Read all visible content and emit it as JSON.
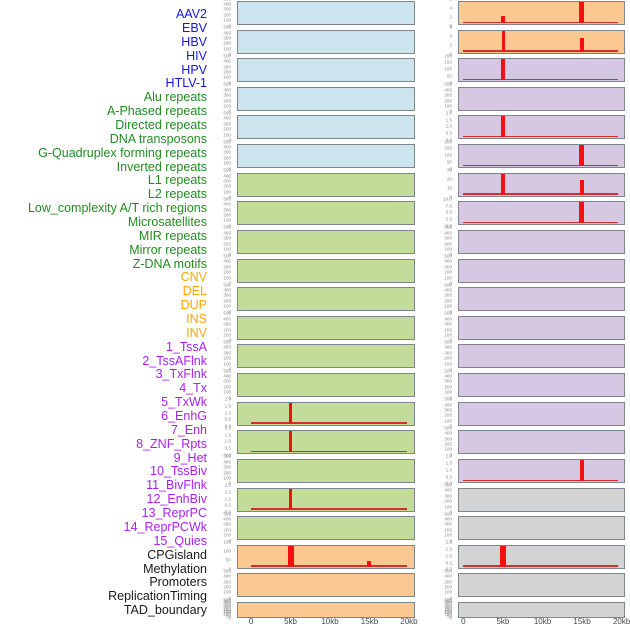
{
  "colors": {
    "virus_label": "#1515e6",
    "repeat_label": "#228B22",
    "structural_variant_label": "#FFA500",
    "chromatin_state_label": "#a821f0",
    "other_label": "#1a1a1a",
    "virus_bg": "#cbe4ee",
    "repeat_bg": "#c3dc9a",
    "structural_variant_bg": "#fcc892",
    "chromatin_state_bg": "#d6c8e2",
    "other_bg": "#d3d3d3",
    "line_red": "#f50f0f",
    "box_border": "#7e868d",
    "tick_text": "#8a8a8a",
    "axis_text": "#4a4a4a"
  },
  "chart_data": {
    "type": "line",
    "title": "",
    "x_tick_labels": [
      "0",
      "5kb",
      "10kb",
      "15kb",
      "20kb"
    ],
    "x_tick_kb": [
      0,
      5,
      10,
      15,
      20
    ],
    "x_range_kb": [
      0,
      20
    ],
    "layout": "22 rows x 2 columns of mini profiles; labels listed column-major (first 22 = left column, last 22 = right column)",
    "legend_position": "none",
    "grid": false,
    "panels": [
      {
        "label": "AAV2",
        "category": "virus",
        "column": "left",
        "y_ticks": [
          "500",
          "400",
          "300",
          "200",
          "100",
          "0"
        ],
        "baseline": false,
        "peaks": []
      },
      {
        "label": "EBV",
        "category": "virus",
        "column": "left",
        "y_ticks": [
          "500",
          "400",
          "300",
          "200",
          "100",
          "0"
        ],
        "baseline": false,
        "peaks": []
      },
      {
        "label": "HBV",
        "category": "virus",
        "column": "left",
        "y_ticks": [
          "500",
          "400",
          "300",
          "200",
          "100",
          "0"
        ],
        "baseline": false,
        "peaks": []
      },
      {
        "label": "HIV",
        "category": "virus",
        "column": "left",
        "y_ticks": [
          "500",
          "400",
          "300",
          "200",
          "100",
          "0"
        ],
        "baseline": false,
        "peaks": []
      },
      {
        "label": "HPV",
        "category": "virus",
        "column": "left",
        "y_ticks": [
          "500",
          "400",
          "300",
          "200",
          "100",
          "0"
        ],
        "baseline": false,
        "peaks": []
      },
      {
        "label": "HTLV-1",
        "category": "virus",
        "column": "left",
        "y_ticks": [
          "500",
          "400",
          "300",
          "200",
          "100",
          "0"
        ],
        "baseline": false,
        "peaks": []
      },
      {
        "label": "Alu repeats",
        "category": "repeat",
        "column": "left",
        "y_ticks": [
          "500",
          "400",
          "300",
          "200",
          "100",
          "0"
        ],
        "baseline": false,
        "peaks": []
      },
      {
        "label": "A-Phased repeats",
        "category": "repeat",
        "column": "left",
        "y_ticks": [
          "500",
          "400",
          "300",
          "200",
          "100",
          "0"
        ],
        "baseline": false,
        "peaks": []
      },
      {
        "label": "Directed repeats",
        "category": "repeat",
        "column": "left",
        "y_ticks": [
          "500",
          "400",
          "300",
          "200",
          "100",
          "0"
        ],
        "baseline": false,
        "peaks": []
      },
      {
        "label": "DNA transposons",
        "category": "repeat",
        "column": "left",
        "y_ticks": [
          "500",
          "400",
          "300",
          "200",
          "100",
          "0"
        ],
        "baseline": false,
        "peaks": []
      },
      {
        "label": "G-Quadruplex forming repeats",
        "category": "repeat",
        "column": "left",
        "y_ticks": [
          "500",
          "400",
          "300",
          "200",
          "100",
          "0"
        ],
        "baseline": false,
        "peaks": []
      },
      {
        "label": "Inverted repeats",
        "category": "repeat",
        "column": "left",
        "y_ticks": [
          "500",
          "400",
          "300",
          "200",
          "100",
          "0"
        ],
        "baseline": false,
        "peaks": []
      },
      {
        "label": "L1 repeats",
        "category": "repeat",
        "column": "left",
        "y_ticks": [
          "500",
          "400",
          "300",
          "200",
          "100",
          "0"
        ],
        "baseline": false,
        "peaks": []
      },
      {
        "label": "L2 repeats",
        "category": "repeat",
        "column": "left",
        "y_ticks": [
          "500",
          "400",
          "300",
          "200",
          "100",
          "0"
        ],
        "baseline": false,
        "peaks": []
      },
      {
        "label": "Low_complexity A/T rich regions",
        "category": "repeat",
        "column": "left",
        "y_ticks": [
          "2.0",
          "1.5",
          "1.0",
          "0.5",
          "0.0"
        ],
        "baseline": true,
        "peaks": [
          {
            "x_kb": 5,
            "value": 2.1,
            "frac": 1.0,
            "w": 3
          }
        ]
      },
      {
        "label": "Microsatellites",
        "category": "repeat",
        "column": "left",
        "y_ticks": [
          "2.0",
          "1.5",
          "1.0",
          "0.5",
          "0.0"
        ],
        "baseline": true,
        "peaks": [
          {
            "x_kb": 5,
            "value": 2.1,
            "frac": 1.0,
            "w": 3
          }
        ]
      },
      {
        "label": "MIR repeats",
        "category": "repeat",
        "column": "left",
        "y_ticks": [
          "500",
          "400",
          "300",
          "200",
          "100",
          "0"
        ],
        "baseline": false,
        "peaks": []
      },
      {
        "label": "Mirror repeats",
        "category": "repeat",
        "column": "left",
        "y_ticks": [
          "2.0",
          "1.5",
          "1.0",
          "0.5",
          "0.0"
        ],
        "baseline": true,
        "peaks": [
          {
            "x_kb": 5,
            "value": 2.1,
            "frac": 1.0,
            "w": 3
          }
        ]
      },
      {
        "label": "Z-DNA motifs",
        "category": "repeat",
        "column": "left",
        "y_ticks": [
          "500",
          "400",
          "300",
          "200",
          "100",
          "0"
        ],
        "baseline": false,
        "peaks": []
      },
      {
        "label": "CNV",
        "category": "structural_variant",
        "column": "left",
        "y_ticks": [
          "150",
          "100",
          "50",
          "0"
        ],
        "baseline": true,
        "peaks": [
          {
            "x_kb": 5,
            "value": 170,
            "frac": 1.0,
            "w": 6
          },
          {
            "x_kb": 15,
            "value": 55,
            "frac": 0.31,
            "w": 4
          }
        ]
      },
      {
        "label": "DEL",
        "category": "structural_variant",
        "column": "left",
        "y_ticks": [
          "500",
          "400",
          "300",
          "200",
          "100",
          "0"
        ],
        "baseline": false,
        "peaks": []
      },
      {
        "label": "DUP",
        "category": "structural_variant",
        "column": "left",
        "y_ticks": [
          "500",
          "450",
          "400",
          "350",
          "300",
          "250",
          "200",
          "150",
          "100",
          "50",
          "0"
        ],
        "baseline": false,
        "peaks": []
      },
      {
        "label": "INS",
        "category": "structural_variant",
        "column": "right",
        "y_ticks": [
          "6",
          "4",
          "2",
          "0"
        ],
        "baseline": true,
        "peaks": [
          {
            "x_kb": 5,
            "value": 2.1,
            "frac": 0.36,
            "w": 4
          },
          {
            "x_kb": 15,
            "value": 6.5,
            "frac": 1.0,
            "w": 5
          }
        ]
      },
      {
        "label": "INV",
        "category": "structural_variant",
        "column": "right",
        "y_ticks": [
          "6",
          "4",
          "2",
          "0"
        ],
        "baseline": true,
        "peaks": [
          {
            "x_kb": 5,
            "value": 6.5,
            "frac": 1.0,
            "w": 3
          },
          {
            "x_kb": 15,
            "value": 4.5,
            "frac": 0.68,
            "w": 4
          }
        ]
      },
      {
        "label": "1_TssA",
        "category": "chromatin_state",
        "column": "right",
        "y_ticks": [
          "200",
          "150",
          "100",
          "50",
          "0"
        ],
        "baseline": true,
        "peaks": [
          {
            "x_kb": 5,
            "value": 215,
            "frac": 1.0,
            "w": 4
          }
        ]
      },
      {
        "label": "2_TssAFlnk",
        "category": "chromatin_state",
        "column": "right",
        "y_ticks": [
          "500",
          "400",
          "300",
          "200",
          "100",
          "0"
        ],
        "baseline": false,
        "peaks": []
      },
      {
        "label": "3_TxFlnk",
        "category": "chromatin_state",
        "column": "right",
        "y_ticks": [
          "2.0",
          "1.5",
          "1.0",
          "0.5",
          "0.0"
        ],
        "baseline": true,
        "peaks": [
          {
            "x_kb": 5,
            "value": 2.1,
            "frac": 1.0,
            "w": 4
          }
        ]
      },
      {
        "label": "4_Tx",
        "category": "chromatin_state",
        "column": "right",
        "y_ticks": [
          "200",
          "150",
          "100",
          "50",
          "0"
        ],
        "baseline": true,
        "peaks": [
          {
            "x_kb": 15,
            "value": 215,
            "frac": 1.0,
            "w": 5
          }
        ]
      },
      {
        "label": "5_TxWk",
        "category": "chromatin_state",
        "column": "right",
        "y_ticks": [
          "30",
          "20",
          "10",
          "0"
        ],
        "baseline": true,
        "peaks": [
          {
            "x_kb": 5,
            "value": 35,
            "frac": 1.0,
            "w": 4
          },
          {
            "x_kb": 15,
            "value": 26,
            "frac": 0.75,
            "w": 4
          }
        ]
      },
      {
        "label": "6_EnhG",
        "category": "chromatin_state",
        "column": "right",
        "y_ticks": [
          "10.0",
          "7.5",
          "5.0",
          "2.5",
          "0.0"
        ],
        "baseline": true,
        "peaks": [
          {
            "x_kb": 15,
            "value": 10.5,
            "frac": 1.0,
            "w": 5
          }
        ]
      },
      {
        "label": "7_Enh",
        "category": "chromatin_state",
        "column": "right",
        "y_ticks": [
          "500",
          "400",
          "300",
          "200",
          "100",
          "0"
        ],
        "baseline": false,
        "peaks": []
      },
      {
        "label": "8_ZNF_Rpts",
        "category": "chromatin_state",
        "column": "right",
        "y_ticks": [
          "500",
          "400",
          "300",
          "200",
          "100",
          "0"
        ],
        "baseline": false,
        "peaks": []
      },
      {
        "label": "9_Het",
        "category": "chromatin_state",
        "column": "right",
        "y_ticks": [
          "500",
          "400",
          "300",
          "200",
          "100",
          "0"
        ],
        "baseline": false,
        "peaks": []
      },
      {
        "label": "10_TssBiv",
        "category": "chromatin_state",
        "column": "right",
        "y_ticks": [
          "500",
          "400",
          "300",
          "200",
          "100",
          "0"
        ],
        "baseline": false,
        "peaks": []
      },
      {
        "label": "11_BivFlnk",
        "category": "chromatin_state",
        "column": "right",
        "y_ticks": [
          "500",
          "400",
          "300",
          "200",
          "100",
          "0"
        ],
        "baseline": false,
        "peaks": []
      },
      {
        "label": "12_EnhBiv",
        "category": "chromatin_state",
        "column": "right",
        "y_ticks": [
          "500",
          "400",
          "300",
          "200",
          "100",
          "0"
        ],
        "baseline": false,
        "peaks": []
      },
      {
        "label": "13_ReprPC",
        "category": "chromatin_state",
        "column": "right",
        "y_ticks": [
          "500",
          "400",
          "300",
          "200",
          "100",
          "0"
        ],
        "baseline": false,
        "peaks": []
      },
      {
        "label": "14_ReprPCWk",
        "category": "chromatin_state",
        "column": "right",
        "y_ticks": [
          "500",
          "400",
          "300",
          "200",
          "100",
          "0"
        ],
        "baseline": false,
        "peaks": []
      },
      {
        "label": "15_Quies",
        "category": "chromatin_state",
        "column": "right",
        "y_ticks": [
          "2.0",
          "1.5",
          "1.0",
          "0.5",
          "0.0"
        ],
        "baseline": true,
        "peaks": [
          {
            "x_kb": 15,
            "value": 2.1,
            "frac": 1.0,
            "w": 4
          }
        ]
      },
      {
        "label": "CPGisland",
        "category": "other",
        "column": "right",
        "y_ticks": [
          "500",
          "400",
          "300",
          "200",
          "100",
          "0"
        ],
        "baseline": false,
        "peaks": []
      },
      {
        "label": "Methylation",
        "category": "other",
        "column": "right",
        "y_ticks": [
          "500",
          "400",
          "300",
          "200",
          "100",
          "0"
        ],
        "baseline": false,
        "peaks": []
      },
      {
        "label": "Promoters",
        "category": "other",
        "column": "right",
        "y_ticks": [
          "2.0",
          "1.5",
          "1.0",
          "0.5",
          "0.0"
        ],
        "baseline": true,
        "peaks": [
          {
            "x_kb": 5,
            "value": 2.1,
            "frac": 1.0,
            "w": 6
          }
        ]
      },
      {
        "label": "ReplicationTiming",
        "category": "other",
        "column": "right",
        "y_ticks": [
          "500",
          "400",
          "300",
          "200",
          "100",
          "0"
        ],
        "baseline": false,
        "peaks": []
      },
      {
        "label": "TAD_boundary",
        "category": "other",
        "column": "right",
        "y_ticks": [
          "500",
          "450",
          "400",
          "350",
          "300",
          "250",
          "200",
          "150",
          "100",
          "50",
          "0"
        ],
        "baseline": false,
        "peaks": []
      }
    ]
  }
}
